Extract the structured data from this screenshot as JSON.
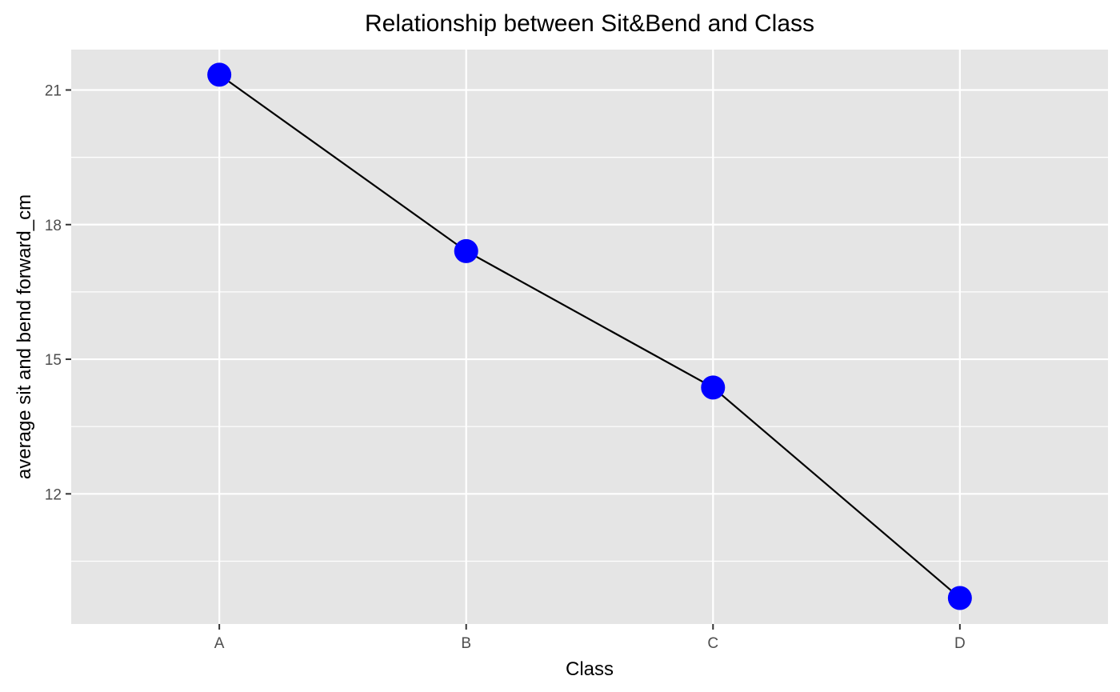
{
  "chart_data": {
    "type": "line",
    "title": "Relationship between Sit&Bend and Class",
    "xlabel": "Class",
    "ylabel": "average sit and bend forward_cm",
    "categories": [
      "A",
      "B",
      "C",
      "D"
    ],
    "series": [
      {
        "values": [
          21.34,
          17.41,
          14.37,
          9.68
        ]
      }
    ],
    "ylim": [
      9.1,
      21.9
    ],
    "y_ticks": [
      12,
      15,
      18,
      21
    ],
    "y_tick_labels": [
      "12",
      "15",
      "18",
      "21"
    ],
    "y_minor_ticks": [
      10.5,
      13.5,
      16.5,
      19.5
    ],
    "grid": true,
    "legend": "none",
    "colors": {
      "panel_background": "#e5e5e5",
      "grid": "#ffffff",
      "line": "#000000",
      "point": "#0000ff",
      "tick_text": "#4d4d4d",
      "tick_mark": "#333333"
    }
  }
}
